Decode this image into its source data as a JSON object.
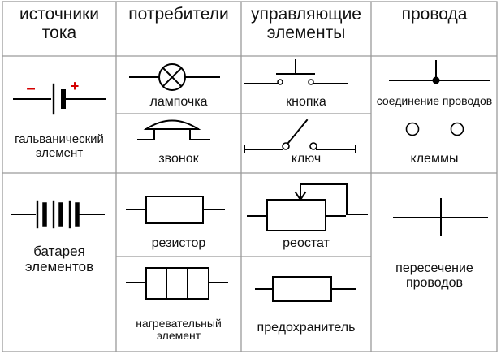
{
  "headers": {
    "sources": "источники тока",
    "consumers": "потребители",
    "controls": "управляющие элементы",
    "wires": "провода"
  },
  "symbols": {
    "cell": {
      "label": "гальванический элемент",
      "minus": "–",
      "plus": "+"
    },
    "battery": {
      "label": "батарея элементов"
    },
    "lamp": {
      "label": "лампочка"
    },
    "bell": {
      "label": "звонок"
    },
    "resistor": {
      "label": "резистор"
    },
    "heater": {
      "label": "нагревательный элемент"
    },
    "button": {
      "label": "кнопка"
    },
    "switch": {
      "label": "ключ"
    },
    "rheostat": {
      "label": "реостат"
    },
    "fuse": {
      "label": "предохранитель"
    },
    "junction": {
      "label": "соединение проводов"
    },
    "terminals": {
      "label": "клеммы"
    },
    "crossing": {
      "label": "пересечение проводов"
    }
  },
  "colors": {
    "line": "#000000",
    "polarity": "#d40000",
    "grid": "#9a9a9a"
  }
}
